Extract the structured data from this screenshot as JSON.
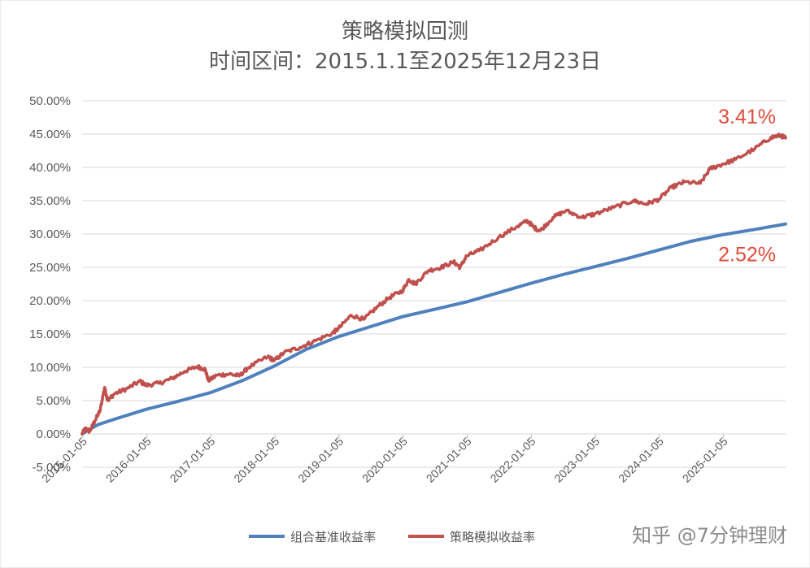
{
  "chart_data": {
    "type": "line",
    "title": "策略模拟回测",
    "subtitle": "时间区间：2015.1.1至2025年12月23日",
    "y_tick_labels": [
      "-5.00%",
      "0.00%",
      "5.00%",
      "10.00%",
      "15.00%",
      "20.00%",
      "25.00%",
      "30.00%",
      "35.00%",
      "40.00%",
      "45.00%",
      "50.00%"
    ],
    "x_tick_labels": [
      "2015-01-05",
      "2016-01-05",
      "2017-01-05",
      "2018-01-05",
      "2019-01-05",
      "2020-01-05",
      "2021-01-05",
      "2022-01-05",
      "2023-01-05",
      "2024-01-05",
      "2025-01-05"
    ],
    "ylim": [
      -0.05,
      0.5
    ],
    "xlim": [
      2015.0,
      2025.98
    ],
    "grid": true,
    "legend_position": "bottom",
    "series": [
      {
        "name": "组合基准收益率",
        "color": "#4f81bd",
        "points": [
          [
            2015.0,
            0.0
          ],
          [
            2015.1,
            0.006
          ],
          [
            2015.25,
            0.014
          ],
          [
            2015.5,
            0.022
          ],
          [
            2016.0,
            0.037
          ],
          [
            2016.5,
            0.049
          ],
          [
            2017.0,
            0.062
          ],
          [
            2017.5,
            0.08
          ],
          [
            2018.0,
            0.102
          ],
          [
            2018.5,
            0.127
          ],
          [
            2019.0,
            0.146
          ],
          [
            2019.5,
            0.161
          ],
          [
            2020.0,
            0.176
          ],
          [
            2020.5,
            0.187
          ],
          [
            2021.0,
            0.198
          ],
          [
            2021.5,
            0.212
          ],
          [
            2022.0,
            0.226
          ],
          [
            2022.5,
            0.239
          ],
          [
            2023.0,
            0.251
          ],
          [
            2023.5,
            0.263
          ],
          [
            2024.0,
            0.276
          ],
          [
            2024.5,
            0.289
          ],
          [
            2025.0,
            0.299
          ],
          [
            2025.5,
            0.307
          ],
          [
            2025.98,
            0.315
          ]
        ]
      },
      {
        "name": "策略模拟收益率",
        "color": "#c0504d",
        "points": [
          [
            2015.0,
            0.0
          ],
          [
            2015.05,
            0.008
          ],
          [
            2015.12,
            0.004
          ],
          [
            2015.2,
            0.02
          ],
          [
            2015.28,
            0.035
          ],
          [
            2015.35,
            0.07
          ],
          [
            2015.4,
            0.05
          ],
          [
            2015.5,
            0.06
          ],
          [
            2015.7,
            0.068
          ],
          [
            2015.9,
            0.079
          ],
          [
            2016.0,
            0.073
          ],
          [
            2016.2,
            0.076
          ],
          [
            2016.4,
            0.083
          ],
          [
            2016.6,
            0.094
          ],
          [
            2016.8,
            0.101
          ],
          [
            2016.92,
            0.097
          ],
          [
            2016.97,
            0.08
          ],
          [
            2017.1,
            0.088
          ],
          [
            2017.3,
            0.09
          ],
          [
            2017.45,
            0.087
          ],
          [
            2017.6,
            0.1
          ],
          [
            2017.9,
            0.116
          ],
          [
            2018.0,
            0.11
          ],
          [
            2018.15,
            0.122
          ],
          [
            2018.4,
            0.13
          ],
          [
            2018.6,
            0.138
          ],
          [
            2018.9,
            0.151
          ],
          [
            2019.0,
            0.158
          ],
          [
            2019.2,
            0.178
          ],
          [
            2019.4,
            0.172
          ],
          [
            2019.6,
            0.19
          ],
          [
            2019.8,
            0.205
          ],
          [
            2020.0,
            0.215
          ],
          [
            2020.1,
            0.232
          ],
          [
            2020.2,
            0.225
          ],
          [
            2020.4,
            0.245
          ],
          [
            2020.6,
            0.25
          ],
          [
            2020.8,
            0.258
          ],
          [
            2020.9,
            0.25
          ],
          [
            2021.0,
            0.267
          ],
          [
            2021.2,
            0.275
          ],
          [
            2021.5,
            0.295
          ],
          [
            2021.8,
            0.312
          ],
          [
            2021.95,
            0.32
          ],
          [
            2022.05,
            0.31
          ],
          [
            2022.15,
            0.305
          ],
          [
            2022.35,
            0.325
          ],
          [
            2022.55,
            0.335
          ],
          [
            2022.8,
            0.325
          ],
          [
            2023.0,
            0.33
          ],
          [
            2023.3,
            0.34
          ],
          [
            2023.6,
            0.35
          ],
          [
            2023.8,
            0.345
          ],
          [
            2024.0,
            0.352
          ],
          [
            2024.2,
            0.37
          ],
          [
            2024.4,
            0.378
          ],
          [
            2024.65,
            0.376
          ],
          [
            2024.8,
            0.398
          ],
          [
            2025.0,
            0.405
          ],
          [
            2025.2,
            0.412
          ],
          [
            2025.5,
            0.428
          ],
          [
            2025.75,
            0.445
          ],
          [
            2025.9,
            0.448
          ],
          [
            2025.98,
            0.444
          ]
        ]
      }
    ],
    "annotations": [
      {
        "text": "3.41%",
        "color": "#e04b3c",
        "series_index": 1
      },
      {
        "text": "2.52%",
        "color": "#e04b3c",
        "series_index": 0
      }
    ]
  },
  "watermark": "知乎 @7分钟理财",
  "colors": {
    "grid": "#d9d9d9",
    "background": "#ffffff",
    "text": "#595959"
  }
}
